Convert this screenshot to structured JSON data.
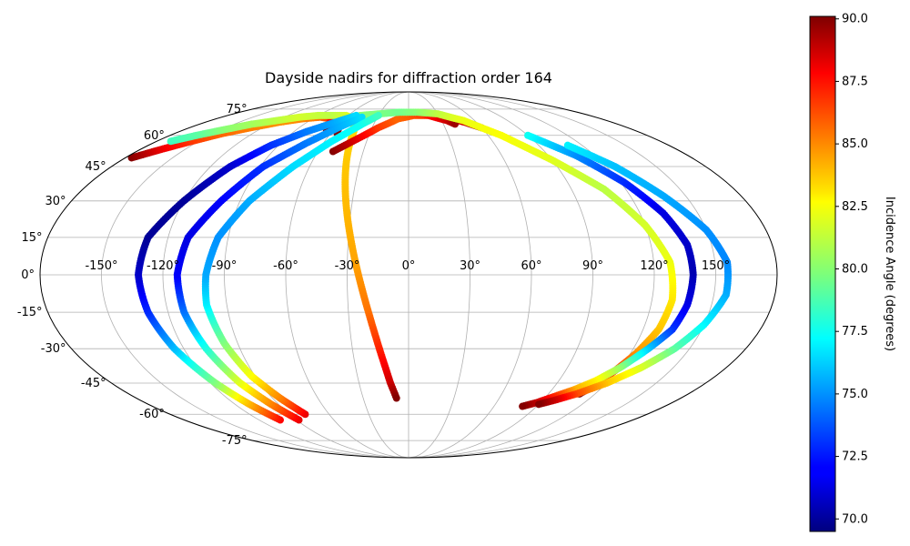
{
  "chart_data": {
    "type": "scatter",
    "projection": "mollweide",
    "title": "Dayside nadirs for diffraction order 164",
    "grid": true,
    "x_ticks": [
      "-150°",
      "-120°",
      "-90°",
      "-60°",
      "-30°",
      "0°",
      "30°",
      "60°",
      "90°",
      "120°",
      "150°"
    ],
    "y_ticks": [
      "75°",
      "60°",
      "45°",
      "30°",
      "15°",
      "0°",
      "-15°",
      "-30°",
      "-45°",
      "-60°",
      "-75°"
    ],
    "xlim": [
      -180,
      180
    ],
    "ylim": [
      -90,
      90
    ],
    "colorbar": {
      "label": "Incidence Angle (degrees)",
      "range": [
        69.5,
        90.1
      ],
      "ticks": [
        "70.0",
        "72.5",
        "75.0",
        "77.5",
        "80.0",
        "82.5",
        "85.0",
        "87.5",
        "90.0"
      ],
      "colormap": "jet",
      "placement": "right"
    },
    "series": [
      {
        "points": [
          {
            "lon": -176,
            "lat": 49,
            "inc": 90.0
          },
          {
            "lon": -166,
            "lat": 53,
            "inc": 88.0
          },
          {
            "lon": -155,
            "lat": 57,
            "inc": 86.5
          },
          {
            "lon": -143,
            "lat": 61,
            "inc": 85.5
          },
          {
            "lon": -130,
            "lat": 64,
            "inc": 85.0
          },
          {
            "lon": -115,
            "lat": 67,
            "inc": 84.6
          },
          {
            "lon": -100,
            "lat": 69,
            "inc": 84.8
          },
          {
            "lon": -85,
            "lat": 70,
            "inc": 85.2
          },
          {
            "lon": -72,
            "lat": 69,
            "inc": 86.5
          },
          {
            "lon": -68,
            "lat": 66,
            "inc": 88.0
          },
          {
            "lon": -66,
            "lat": 63,
            "inc": 90.0
          }
        ]
      },
      {
        "points": [
          {
            "lon": -170,
            "lat": 57,
            "inc": 78.5
          },
          {
            "lon": -160,
            "lat": 60,
            "inc": 79.0
          },
          {
            "lon": -148,
            "lat": 63,
            "inc": 80.0
          },
          {
            "lon": -135,
            "lat": 66,
            "inc": 80.5
          },
          {
            "lon": -120,
            "lat": 68,
            "inc": 81.0
          },
          {
            "lon": -105,
            "lat": 70,
            "inc": 81.5
          },
          {
            "lon": -90,
            "lat": 71,
            "inc": 81.2
          },
          {
            "lon": -75,
            "lat": 71,
            "inc": 81.0
          },
          {
            "lon": -62,
            "lat": 71,
            "inc": 81.5
          },
          {
            "lon": -50,
            "lat": 69,
            "inc": 82.5
          },
          {
            "lon": -43,
            "lat": 62,
            "inc": 83.2
          },
          {
            "lon": -38,
            "lat": 45,
            "inc": 83.5
          },
          {
            "lon": -32,
            "lat": 25,
            "inc": 83.8
          },
          {
            "lon": -26,
            "lat": 5,
            "inc": 84.2
          },
          {
            "lon": -20,
            "lat": -15,
            "inc": 85.2
          },
          {
            "lon": -15,
            "lat": -32,
            "inc": 87.0
          },
          {
            "lon": -11,
            "lat": -45,
            "inc": 88.5
          },
          {
            "lon": -8,
            "lat": -52,
            "inc": 90.0
          }
        ]
      },
      {
        "points": [
          {
            "lon": -61,
            "lat": 68,
            "inc": 88.0
          },
          {
            "lon": -58,
            "lat": 65,
            "inc": 89.0
          },
          {
            "lon": -55,
            "lat": 61,
            "inc": 90.0
          }
        ]
      },
      {
        "points": [
          {
            "lon": -50,
            "lat": 52,
            "inc": 90.0
          },
          {
            "lon": -40,
            "lat": 57,
            "inc": 88.5
          },
          {
            "lon": -25,
            "lat": 64,
            "inc": 86.5
          },
          {
            "lon": -10,
            "lat": 69,
            "inc": 85.5
          },
          {
            "lon": 5,
            "lat": 71,
            "inc": 85.8
          },
          {
            "lon": 20,
            "lat": 71,
            "inc": 86.5
          },
          {
            "lon": 35,
            "lat": 70,
            "inc": 87.5
          },
          {
            "lon": 50,
            "lat": 67,
            "inc": 88.5
          },
          {
            "lon": 60,
            "lat": 64,
            "inc": 89.8
          }
        ]
      },
      {
        "points": [
          {
            "lon": 2,
            "lat": 72,
            "inc": 86.0
          },
          {
            "lon": 15,
            "lat": 72,
            "inc": 86.5
          },
          {
            "lon": 25,
            "lat": 70,
            "inc": 87.5
          },
          {
            "lon": 35,
            "lat": 68,
            "inc": 88.5
          },
          {
            "lon": 40,
            "lat": 66,
            "inc": 89.5
          }
        ]
      },
      {
        "points": [
          {
            "lon": -48,
            "lat": 71,
            "inc": 80.0
          },
          {
            "lon": -30,
            "lat": 72,
            "inc": 79.8
          },
          {
            "lon": -10,
            "lat": 73,
            "inc": 79.5
          },
          {
            "lon": 10,
            "lat": 73,
            "inc": 80.0
          },
          {
            "lon": 30,
            "lat": 72,
            "inc": 81.0
          },
          {
            "lon": 50,
            "lat": 68,
            "inc": 82.0
          },
          {
            "lon": 70,
            "lat": 60,
            "inc": 82.3
          },
          {
            "lon": 90,
            "lat": 48,
            "inc": 81.8
          },
          {
            "lon": 108,
            "lat": 35,
            "inc": 81.0
          },
          {
            "lon": 120,
            "lat": 20,
            "inc": 81.5
          },
          {
            "lon": 128,
            "lat": 5,
            "inc": 82.0
          },
          {
            "lon": 130,
            "lat": -10,
            "inc": 82.8
          },
          {
            "lon": 128,
            "lat": -22,
            "inc": 83.5
          },
          {
            "lon": 123,
            "lat": -32,
            "inc": 84.5
          },
          {
            "lon": 118,
            "lat": -40,
            "inc": 86.5
          },
          {
            "lon": 114,
            "lat": -46,
            "inc": 88.5
          },
          {
            "lon": 110,
            "lat": -50,
            "inc": 90.0
          }
        ]
      },
      {
        "points": [
          {
            "lon": -103,
            "lat": -63,
            "inc": 87.5
          },
          {
            "lon": -110,
            "lat": -55,
            "inc": 84.0
          },
          {
            "lon": -117,
            "lat": -45,
            "inc": 80.0
          },
          {
            "lon": -125,
            "lat": -30,
            "inc": 76.0
          },
          {
            "lon": -130,
            "lat": -15,
            "inc": 73.0
          },
          {
            "lon": -132,
            "lat": 0,
            "inc": 71.0
          },
          {
            "lon": -130,
            "lat": 15,
            "inc": 70.0
          },
          {
            "lon": -120,
            "lat": 30,
            "inc": 70.0
          },
          {
            "lon": -108,
            "lat": 45,
            "inc": 71.0
          },
          {
            "lon": -95,
            "lat": 55,
            "inc": 73.0
          },
          {
            "lon": -80,
            "lat": 62,
            "inc": 74.5
          },
          {
            "lon": -65,
            "lat": 67,
            "inc": 75.5
          },
          {
            "lon": -52,
            "lat": 71,
            "inc": 76.5
          }
        ]
      },
      {
        "points": [
          {
            "lon": -88,
            "lat": -63,
            "inc": 88.0
          },
          {
            "lon": -95,
            "lat": -55,
            "inc": 85.0
          },
          {
            "lon": -102,
            "lat": -45,
            "inc": 82.0
          },
          {
            "lon": -108,
            "lat": -30,
            "inc": 78.0
          },
          {
            "lon": -112,
            "lat": -15,
            "inc": 74.5
          },
          {
            "lon": -113,
            "lat": 0,
            "inc": 72.0
          },
          {
            "lon": -110,
            "lat": 15,
            "inc": 71.5
          },
          {
            "lon": -100,
            "lat": 30,
            "inc": 72.0
          },
          {
            "lon": -88,
            "lat": 45,
            "inc": 73.0
          },
          {
            "lon": -72,
            "lat": 56,
            "inc": 74.5
          },
          {
            "lon": -58,
            "lat": 64,
            "inc": 75.5
          },
          {
            "lon": -45,
            "lat": 70,
            "inc": 76.5
          }
        ]
      },
      {
        "points": [
          {
            "lon": -78,
            "lat": -60,
            "inc": 88.0
          },
          {
            "lon": -85,
            "lat": -52,
            "inc": 85.0
          },
          {
            "lon": -92,
            "lat": -42,
            "inc": 82.5
          },
          {
            "lon": -97,
            "lat": -28,
            "inc": 80.0
          },
          {
            "lon": -100,
            "lat": -12,
            "inc": 77.0
          },
          {
            "lon": -99,
            "lat": 0,
            "inc": 75.5
          },
          {
            "lon": -95,
            "lat": 15,
            "inc": 75.0
          },
          {
            "lon": -85,
            "lat": 30,
            "inc": 75.5
          },
          {
            "lon": -70,
            "lat": 45,
            "inc": 76.5
          },
          {
            "lon": -55,
            "lat": 57,
            "inc": 77.0
          },
          {
            "lon": -40,
            "lat": 66,
            "inc": 77.5
          },
          {
            "lon": -30,
            "lat": 71,
            "inc": 78.5
          }
        ]
      },
      {
        "points": [
          {
            "lon": 90,
            "lat": 60,
            "inc": 77.5
          },
          {
            "lon": 108,
            "lat": 50,
            "inc": 75.0
          },
          {
            "lon": 122,
            "lat": 38,
            "inc": 73.0
          },
          {
            "lon": 132,
            "lat": 25,
            "inc": 71.5
          },
          {
            "lon": 138,
            "lat": 12,
            "inc": 71.0
          },
          {
            "lon": 139,
            "lat": 0,
            "inc": 70.5
          },
          {
            "lon": 138,
            "lat": -12,
            "inc": 71.5
          },
          {
            "lon": 135,
            "lat": -22,
            "inc": 73.0
          },
          {
            "lon": 128,
            "lat": -30,
            "inc": 76.0
          },
          {
            "lon": 120,
            "lat": -38,
            "inc": 80.0
          },
          {
            "lon": 112,
            "lat": -44,
            "inc": 82.5
          },
          {
            "lon": 104,
            "lat": -48,
            "inc": 84.0
          },
          {
            "lon": 96,
            "lat": -51,
            "inc": 86.5
          },
          {
            "lon": 88,
            "lat": -54,
            "inc": 88.5
          },
          {
            "lon": 80,
            "lat": -56,
            "inc": 90.0
          }
        ]
      },
      {
        "points": [
          {
            "lon": 110,
            "lat": 55,
            "inc": 77.0
          },
          {
            "lon": 125,
            "lat": 45,
            "inc": 76.0
          },
          {
            "lon": 138,
            "lat": 32,
            "inc": 75.5
          },
          {
            "lon": 150,
            "lat": 18,
            "inc": 75.0
          },
          {
            "lon": 156,
            "lat": 5,
            "inc": 74.8
          },
          {
            "lon": 156,
            "lat": -8,
            "inc": 75.5
          },
          {
            "lon": 150,
            "lat": -20,
            "inc": 77.0
          },
          {
            "lon": 142,
            "lat": -30,
            "inc": 79.0
          },
          {
            "lon": 132,
            "lat": -38,
            "inc": 81.5
          },
          {
            "lon": 120,
            "lat": -45,
            "inc": 83.5
          },
          {
            "lon": 108,
            "lat": -50,
            "inc": 86.0
          },
          {
            "lon": 98,
            "lat": -53,
            "inc": 88.5
          },
          {
            "lon": 90,
            "lat": -55,
            "inc": 90.0
          }
        ]
      }
    ]
  }
}
